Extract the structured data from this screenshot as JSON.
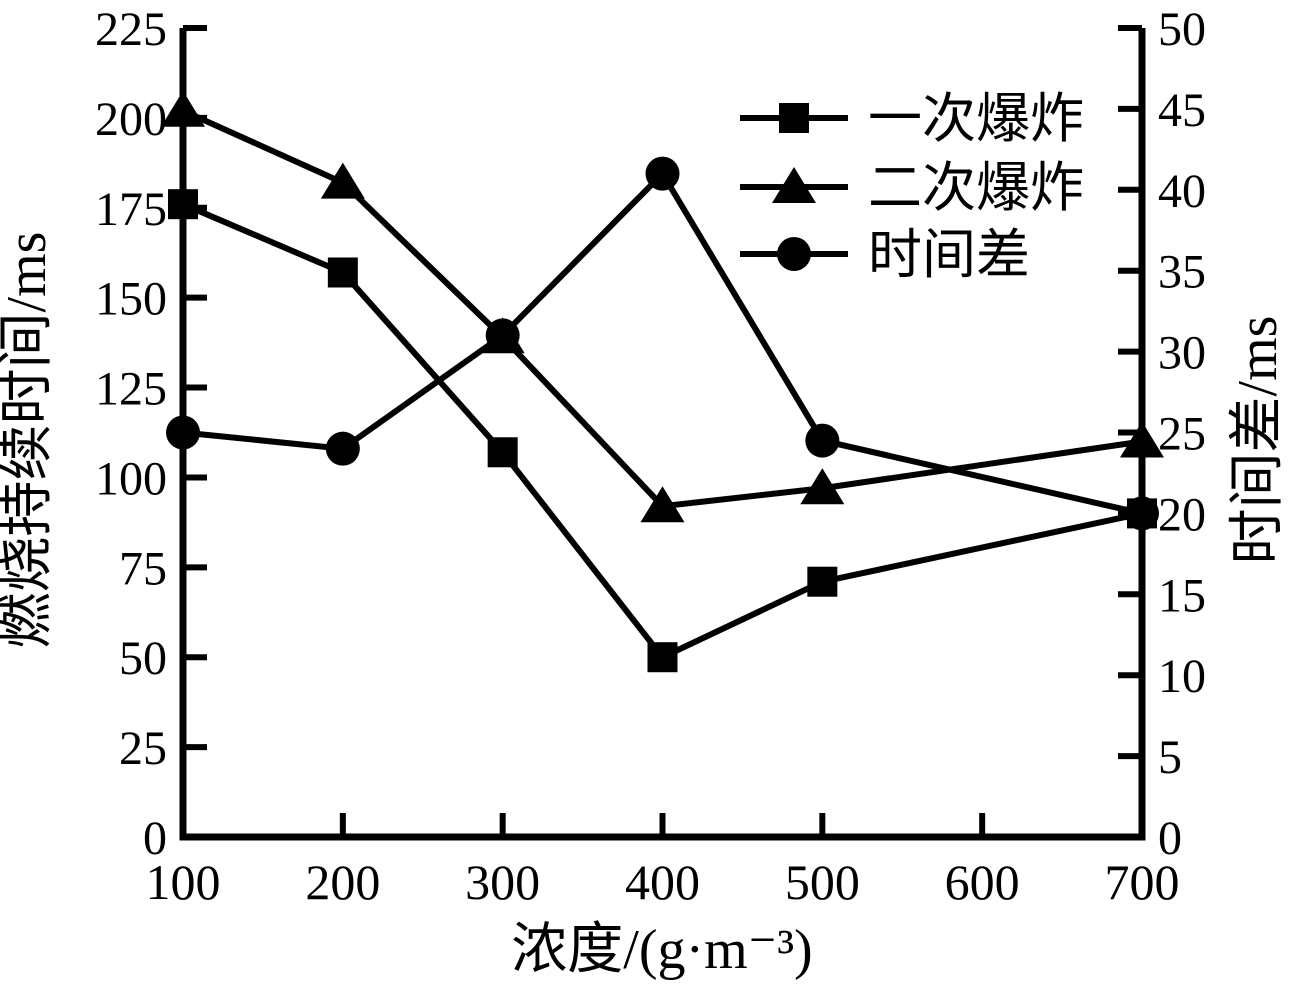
{
  "figure_title": "",
  "chart_data": {
    "type": "line",
    "x": [
      100,
      200,
      300,
      400,
      500,
      700
    ],
    "xlim": [
      100,
      700
    ],
    "x_ticks": [
      100,
      200,
      300,
      400,
      500,
      600,
      700
    ],
    "xlabel": "浓度/(g·m⁻³)",
    "left_axis": {
      "label": "燃烧持续时间/ms",
      "lim": [
        0,
        225
      ],
      "ticks": [
        0,
        25,
        50,
        75,
        100,
        125,
        150,
        175,
        200,
        225
      ]
    },
    "right_axis": {
      "label": "时间差/ms",
      "lim": [
        0,
        50
      ],
      "ticks": [
        0,
        5,
        10,
        15,
        20,
        25,
        30,
        35,
        40,
        45,
        50
      ]
    },
    "series": [
      {
        "name": "一次爆炸",
        "marker": "square",
        "axis": "left",
        "values": [
          176,
          157,
          107,
          50,
          71,
          90
        ]
      },
      {
        "name": "二次爆炸",
        "marker": "triangle",
        "axis": "left",
        "values": [
          202,
          182,
          139,
          92,
          97,
          110
        ]
      },
      {
        "name": "时间差",
        "marker": "circle",
        "axis": "right",
        "values": [
          25,
          24,
          31,
          41,
          24.5,
          20
        ]
      }
    ],
    "legend": {
      "position": "top-right",
      "entries": [
        {
          "label": "一次爆炸",
          "marker": "square"
        },
        {
          "label": "二次爆炸",
          "marker": "triangle"
        },
        {
          "label": "时间差",
          "marker": "circle"
        }
      ]
    },
    "grid": false,
    "colors": {
      "stroke": "#000000",
      "background": "#ffffff"
    }
  }
}
